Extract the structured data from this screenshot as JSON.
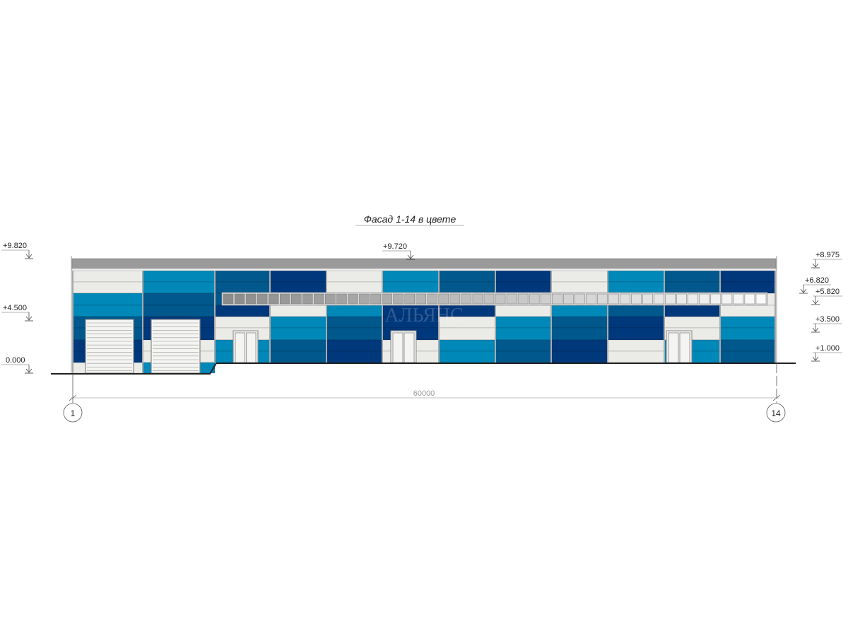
{
  "title": "Фасад 1-14 в цвете",
  "dimension": "60000",
  "axes": [
    "1",
    "14"
  ],
  "watermark": "АЛЬЯНС",
  "levels_left": [
    "+9.820",
    "+4.500",
    "0.000"
  ],
  "level_center": "+9.720",
  "levels_right": [
    "+8.975",
    "+6.820",
    "+5.820",
    "+3.500",
    "+1.000"
  ],
  "colors": {
    "W": "#ebebe8",
    "L": "#0088b8",
    "M": "#00588c",
    "D": "#00387c",
    "roof": "#9a9a9a"
  },
  "panel_scheme": [
    [
      "W",
      "W",
      "L",
      "L",
      "M",
      "M",
      "D",
      "D",
      "W"
    ],
    [
      "L",
      "L",
      "M",
      "M",
      "D",
      "D",
      "W",
      "W",
      "L"
    ],
    [
      "M",
      "M",
      "M",
      "D",
      "W",
      "W",
      "L",
      "L"
    ],
    [
      "D",
      "D",
      "D",
      "W",
      "L",
      "L",
      "M",
      "M"
    ],
    [
      "W",
      "W",
      "W",
      "L",
      "M",
      "M",
      "D",
      "D"
    ],
    [
      "L",
      "L",
      "L",
      "D",
      "D",
      "D",
      "W",
      "W"
    ],
    [
      "M",
      "M",
      "M",
      "D",
      "W",
      "W",
      "L",
      "L"
    ],
    [
      "D",
      "D",
      "D",
      "W",
      "L",
      "L",
      "M",
      "M"
    ],
    [
      "W",
      "W",
      "W",
      "L",
      "M",
      "M",
      "D",
      "D"
    ],
    [
      "L",
      "L",
      "L",
      "M",
      "D",
      "D",
      "W",
      "W"
    ],
    [
      "M",
      "M",
      "M",
      "D",
      "W",
      "W",
      "L",
      "L"
    ],
    [
      "D",
      "D",
      "W",
      "W",
      "L",
      "L",
      "M",
      "M"
    ]
  ]
}
